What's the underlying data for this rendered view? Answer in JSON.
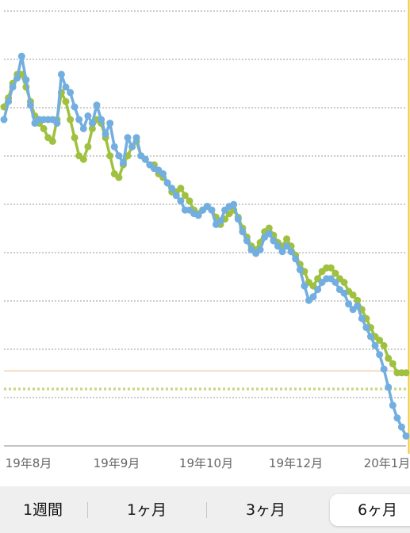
{
  "chart_data": {
    "type": "line",
    "x_tick_labels": [
      "19年8月",
      "19年9月",
      "19年10月",
      "19年12月",
      "20年1月"
    ],
    "grid": "horizontal dotted",
    "colors": {
      "series_green": "#9fc13f",
      "series_blue": "#72aee0",
      "target_line": "#c7d98a",
      "reference_line": "#f0c7a0",
      "accent": "#f5c431"
    },
    "series": [
      {
        "values": [
          157,
          162,
          170,
          175,
          175,
          168,
          160,
          152,
          148,
          145,
          140,
          138,
          150,
          165,
          160,
          150,
          140,
          130,
          128,
          135,
          145,
          150,
          148,
          140,
          130,
          120,
          118,
          125,
          130,
          135,
          138,
          130,
          128,
          125,
          125,
          120,
          118,
          115,
          110,
          110,
          112,
          108,
          105,
          100,
          98,
          100,
          102,
          100,
          96,
          92,
          95,
          98,
          100,
          96,
          90,
          85,
          80,
          78,
          82,
          88,
          90,
          86,
          82,
          80,
          84,
          80,
          75,
          70,
          66,
          60,
          58,
          62,
          66,
          68,
          68,
          65,
          62,
          60,
          55,
          53,
          50,
          45,
          40,
          35,
          30,
          28,
          25,
          18,
          15,
          10,
          10,
          10
        ]
      },
      {
        "values": [
          150,
          160,
          168,
          173,
          185,
          172,
          158,
          148,
          150,
          150,
          150,
          150,
          148,
          175,
          168,
          165,
          157,
          150,
          145,
          152,
          148,
          158,
          150,
          142,
          148,
          135,
          130,
          126,
          140,
          135,
          140,
          130,
          128,
          125,
          123,
          122,
          120,
          115,
          112,
          108,
          105,
          100,
          100,
          98,
          97,
          100,
          102,
          100,
          92,
          94,
          100,
          102,
          103,
          95,
          88,
          83,
          78,
          76,
          78,
          85,
          87,
          83,
          80,
          77,
          80,
          77,
          73,
          67,
          58,
          50,
          52,
          56,
          60,
          62,
          62,
          60,
          56,
          54,
          48,
          45,
          47,
          40,
          35,
          30,
          25,
          20,
          12,
          2,
          -8,
          -15,
          -20,
          -25
        ]
      }
    ],
    "target_level": 1,
    "reference_level": 11,
    "selected_range": "6ヶ月"
  },
  "range_selector": {
    "options": [
      "1週間",
      "1ヶ月",
      "3ヶ月",
      "6ヶ月"
    ]
  }
}
